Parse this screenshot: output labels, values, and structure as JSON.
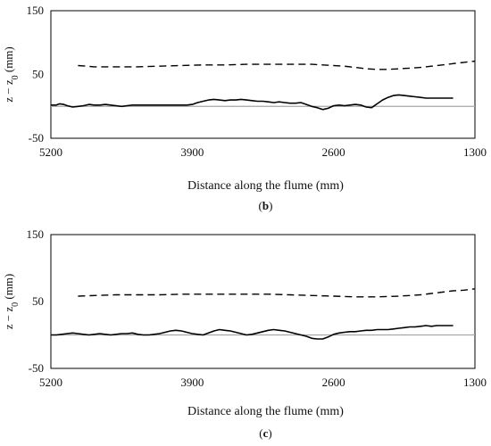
{
  "chart_data": [
    {
      "type": "line",
      "panel_label": "b",
      "xlabel": "Distance along the flume (mm)",
      "ylabel_parts": [
        "z − z",
        "0",
        " (mm)"
      ],
      "xlim": [
        5200,
        1300
      ],
      "ylim": [
        -50,
        150
      ],
      "xticks": [
        5200,
        3900,
        2600,
        1300
      ],
      "yticks": [
        150,
        50,
        -50
      ],
      "reference_line_y": 0,
      "series": [
        {
          "style": "dashed",
          "x": [
            4950,
            4800,
            4600,
            4400,
            4200,
            4000,
            3800,
            3600,
            3400,
            3200,
            3000,
            2800,
            2700,
            2600,
            2500,
            2400,
            2300,
            2200,
            2100,
            2000,
            1900,
            1800,
            1700,
            1600,
            1500,
            1400,
            1300
          ],
          "y": [
            64,
            62,
            62,
            62,
            63,
            64,
            65,
            65,
            66,
            66,
            66,
            66,
            65,
            64,
            63,
            61,
            59,
            58,
            58,
            59,
            60,
            61,
            63,
            65,
            67,
            69,
            71
          ]
        },
        {
          "style": "solid",
          "x": [
            5200,
            5150,
            5120,
            5080,
            5050,
            5000,
            4950,
            4900,
            4850,
            4800,
            4750,
            4700,
            4650,
            4600,
            4550,
            4500,
            4450,
            4400,
            4350,
            4300,
            4250,
            4200,
            4150,
            4100,
            4050,
            4000,
            3950,
            3900,
            3850,
            3800,
            3750,
            3700,
            3650,
            3600,
            3550,
            3500,
            3450,
            3400,
            3350,
            3300,
            3250,
            3200,
            3150,
            3100,
            3050,
            3000,
            2950,
            2900,
            2850,
            2800,
            2750,
            2700,
            2650,
            2600,
            2550,
            2500,
            2450,
            2400,
            2350,
            2300,
            2250,
            2200,
            2150,
            2100,
            2050,
            2000,
            1950,
            1900,
            1850,
            1800,
            1750,
            1700,
            1650,
            1600,
            1550,
            1500
          ],
          "y": [
            2,
            2,
            4,
            3,
            1,
            -1,
            0,
            1,
            3,
            2,
            2,
            3,
            2,
            1,
            0,
            1,
            2,
            2,
            2,
            2,
            2,
            2,
            2,
            2,
            2,
            2,
            2,
            3,
            6,
            8,
            10,
            11,
            10,
            9,
            10,
            10,
            11,
            10,
            9,
            8,
            8,
            7,
            6,
            7,
            6,
            5,
            5,
            6,
            3,
            0,
            -2,
            -5,
            -3,
            1,
            2,
            1,
            2,
            3,
            2,
            -1,
            -2,
            4,
            10,
            14,
            17,
            18,
            17,
            16,
            15,
            14,
            13,
            13,
            13,
            13,
            13,
            13
          ]
        }
      ]
    },
    {
      "type": "line",
      "panel_label": "c",
      "xlabel": "Distance along the flume (mm)",
      "ylabel_parts": [
        "z − z",
        "0",
        " (mm)"
      ],
      "xlim": [
        5200,
        1300
      ],
      "ylim": [
        -50,
        150
      ],
      "xticks": [
        5200,
        3900,
        2600,
        1300
      ],
      "yticks": [
        150,
        50,
        -50
      ],
      "reference_line_y": 0,
      "series": [
        {
          "style": "dashed",
          "x": [
            4950,
            4800,
            4600,
            4400,
            4200,
            4000,
            3800,
            3600,
            3400,
            3200,
            3000,
            2800,
            2600,
            2400,
            2200,
            2000,
            1900,
            1800,
            1700,
            1600,
            1500,
            1400,
            1300
          ],
          "y": [
            58,
            59,
            60,
            60,
            60,
            61,
            61,
            61,
            61,
            61,
            60,
            59,
            58,
            57,
            57,
            58,
            59,
            60,
            62,
            64,
            66,
            67,
            69
          ]
        },
        {
          "style": "solid",
          "x": [
            5200,
            5150,
            5100,
            5050,
            5000,
            4950,
            4900,
            4850,
            4800,
            4750,
            4700,
            4650,
            4600,
            4550,
            4500,
            4450,
            4400,
            4350,
            4300,
            4250,
            4200,
            4150,
            4100,
            4050,
            4000,
            3950,
            3900,
            3850,
            3800,
            3750,
            3700,
            3650,
            3600,
            3550,
            3500,
            3450,
            3400,
            3350,
            3300,
            3250,
            3200,
            3150,
            3100,
            3050,
            3000,
            2950,
            2900,
            2850,
            2800,
            2750,
            2700,
            2650,
            2600,
            2550,
            2500,
            2450,
            2400,
            2350,
            2300,
            2250,
            2200,
            2150,
            2100,
            2050,
            2000,
            1950,
            1900,
            1850,
            1800,
            1750,
            1700,
            1650,
            1600,
            1550,
            1500
          ],
          "y": [
            0,
            0,
            1,
            2,
            3,
            2,
            1,
            0,
            1,
            2,
            1,
            0,
            1,
            2,
            2,
            3,
            1,
            0,
            0,
            1,
            2,
            4,
            6,
            7,
            6,
            4,
            2,
            1,
            0,
            3,
            6,
            8,
            7,
            6,
            4,
            2,
            0,
            1,
            3,
            5,
            7,
            8,
            7,
            6,
            4,
            2,
            0,
            -2,
            -5,
            -6,
            -6,
            -3,
            1,
            3,
            4,
            5,
            5,
            6,
            7,
            7,
            8,
            8,
            8,
            9,
            10,
            11,
            12,
            12,
            13,
            14,
            13,
            14,
            14,
            14,
            14
          ]
        }
      ]
    }
  ]
}
